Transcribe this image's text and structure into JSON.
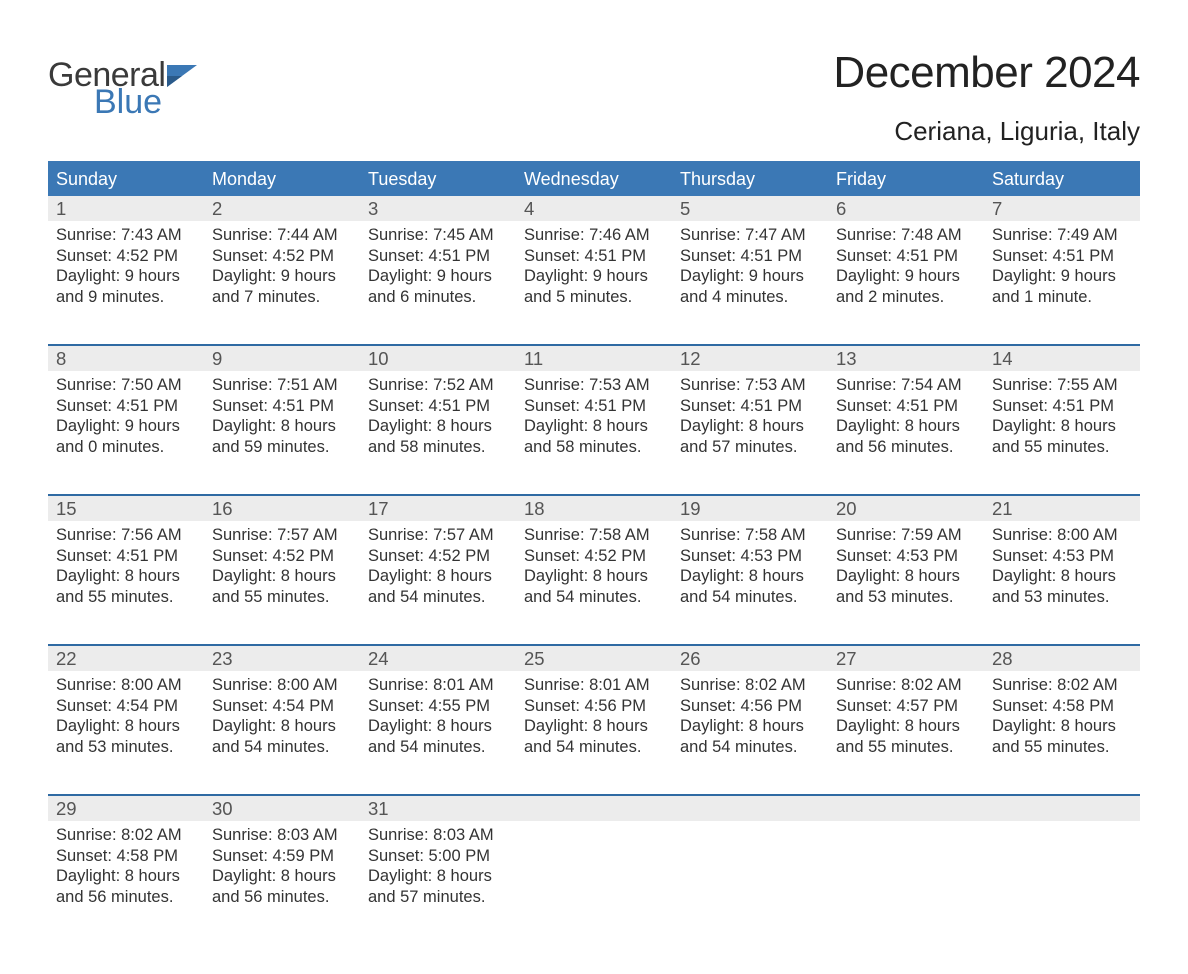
{
  "logo": {
    "word1": "General",
    "word2": "Blue",
    "flag_color": "#3b78b5"
  },
  "title": "December 2024",
  "subtitle": "Ceriana, Liguria, Italy",
  "colors": {
    "header_blue": "#3b78b5",
    "border_blue": "#2f6aa3",
    "daynum_bg": "#ececec",
    "text": "#2b2b2b",
    "white": "#ffffff"
  },
  "day_names": [
    "Sunday",
    "Monday",
    "Tuesday",
    "Wednesday",
    "Thursday",
    "Friday",
    "Saturday"
  ],
  "weeks": [
    [
      {
        "n": "1",
        "sunrise": "Sunrise: 7:43 AM",
        "sunset": "Sunset: 4:52 PM",
        "d1": "Daylight: 9 hours",
        "d2": "and 9 minutes."
      },
      {
        "n": "2",
        "sunrise": "Sunrise: 7:44 AM",
        "sunset": "Sunset: 4:52 PM",
        "d1": "Daylight: 9 hours",
        "d2": "and 7 minutes."
      },
      {
        "n": "3",
        "sunrise": "Sunrise: 7:45 AM",
        "sunset": "Sunset: 4:51 PM",
        "d1": "Daylight: 9 hours",
        "d2": "and 6 minutes."
      },
      {
        "n": "4",
        "sunrise": "Sunrise: 7:46 AM",
        "sunset": "Sunset: 4:51 PM",
        "d1": "Daylight: 9 hours",
        "d2": "and 5 minutes."
      },
      {
        "n": "5",
        "sunrise": "Sunrise: 7:47 AM",
        "sunset": "Sunset: 4:51 PM",
        "d1": "Daylight: 9 hours",
        "d2": "and 4 minutes."
      },
      {
        "n": "6",
        "sunrise": "Sunrise: 7:48 AM",
        "sunset": "Sunset: 4:51 PM",
        "d1": "Daylight: 9 hours",
        "d2": "and 2 minutes."
      },
      {
        "n": "7",
        "sunrise": "Sunrise: 7:49 AM",
        "sunset": "Sunset: 4:51 PM",
        "d1": "Daylight: 9 hours",
        "d2": "and 1 minute."
      }
    ],
    [
      {
        "n": "8",
        "sunrise": "Sunrise: 7:50 AM",
        "sunset": "Sunset: 4:51 PM",
        "d1": "Daylight: 9 hours",
        "d2": "and 0 minutes."
      },
      {
        "n": "9",
        "sunrise": "Sunrise: 7:51 AM",
        "sunset": "Sunset: 4:51 PM",
        "d1": "Daylight: 8 hours",
        "d2": "and 59 minutes."
      },
      {
        "n": "10",
        "sunrise": "Sunrise: 7:52 AM",
        "sunset": "Sunset: 4:51 PM",
        "d1": "Daylight: 8 hours",
        "d2": "and 58 minutes."
      },
      {
        "n": "11",
        "sunrise": "Sunrise: 7:53 AM",
        "sunset": "Sunset: 4:51 PM",
        "d1": "Daylight: 8 hours",
        "d2": "and 58 minutes."
      },
      {
        "n": "12",
        "sunrise": "Sunrise: 7:53 AM",
        "sunset": "Sunset: 4:51 PM",
        "d1": "Daylight: 8 hours",
        "d2": "and 57 minutes."
      },
      {
        "n": "13",
        "sunrise": "Sunrise: 7:54 AM",
        "sunset": "Sunset: 4:51 PM",
        "d1": "Daylight: 8 hours",
        "d2": "and 56 minutes."
      },
      {
        "n": "14",
        "sunrise": "Sunrise: 7:55 AM",
        "sunset": "Sunset: 4:51 PM",
        "d1": "Daylight: 8 hours",
        "d2": "and 55 minutes."
      }
    ],
    [
      {
        "n": "15",
        "sunrise": "Sunrise: 7:56 AM",
        "sunset": "Sunset: 4:51 PM",
        "d1": "Daylight: 8 hours",
        "d2": "and 55 minutes."
      },
      {
        "n": "16",
        "sunrise": "Sunrise: 7:57 AM",
        "sunset": "Sunset: 4:52 PM",
        "d1": "Daylight: 8 hours",
        "d2": "and 55 minutes."
      },
      {
        "n": "17",
        "sunrise": "Sunrise: 7:57 AM",
        "sunset": "Sunset: 4:52 PM",
        "d1": "Daylight: 8 hours",
        "d2": "and 54 minutes."
      },
      {
        "n": "18",
        "sunrise": "Sunrise: 7:58 AM",
        "sunset": "Sunset: 4:52 PM",
        "d1": "Daylight: 8 hours",
        "d2": "and 54 minutes."
      },
      {
        "n": "19",
        "sunrise": "Sunrise: 7:58 AM",
        "sunset": "Sunset: 4:53 PM",
        "d1": "Daylight: 8 hours",
        "d2": "and 54 minutes."
      },
      {
        "n": "20",
        "sunrise": "Sunrise: 7:59 AM",
        "sunset": "Sunset: 4:53 PM",
        "d1": "Daylight: 8 hours",
        "d2": "and 53 minutes."
      },
      {
        "n": "21",
        "sunrise": "Sunrise: 8:00 AM",
        "sunset": "Sunset: 4:53 PM",
        "d1": "Daylight: 8 hours",
        "d2": "and 53 minutes."
      }
    ],
    [
      {
        "n": "22",
        "sunrise": "Sunrise: 8:00 AM",
        "sunset": "Sunset: 4:54 PM",
        "d1": "Daylight: 8 hours",
        "d2": "and 53 minutes."
      },
      {
        "n": "23",
        "sunrise": "Sunrise: 8:00 AM",
        "sunset": "Sunset: 4:54 PM",
        "d1": "Daylight: 8 hours",
        "d2": "and 54 minutes."
      },
      {
        "n": "24",
        "sunrise": "Sunrise: 8:01 AM",
        "sunset": "Sunset: 4:55 PM",
        "d1": "Daylight: 8 hours",
        "d2": "and 54 minutes."
      },
      {
        "n": "25",
        "sunrise": "Sunrise: 8:01 AM",
        "sunset": "Sunset: 4:56 PM",
        "d1": "Daylight: 8 hours",
        "d2": "and 54 minutes."
      },
      {
        "n": "26",
        "sunrise": "Sunrise: 8:02 AM",
        "sunset": "Sunset: 4:56 PM",
        "d1": "Daylight: 8 hours",
        "d2": "and 54 minutes."
      },
      {
        "n": "27",
        "sunrise": "Sunrise: 8:02 AM",
        "sunset": "Sunset: 4:57 PM",
        "d1": "Daylight: 8 hours",
        "d2": "and 55 minutes."
      },
      {
        "n": "28",
        "sunrise": "Sunrise: 8:02 AM",
        "sunset": "Sunset: 4:58 PM",
        "d1": "Daylight: 8 hours",
        "d2": "and 55 minutes."
      }
    ],
    [
      {
        "n": "29",
        "sunrise": "Sunrise: 8:02 AM",
        "sunset": "Sunset: 4:58 PM",
        "d1": "Daylight: 8 hours",
        "d2": "and 56 minutes."
      },
      {
        "n": "30",
        "sunrise": "Sunrise: 8:03 AM",
        "sunset": "Sunset: 4:59 PM",
        "d1": "Daylight: 8 hours",
        "d2": "and 56 minutes."
      },
      {
        "n": "31",
        "sunrise": "Sunrise: 8:03 AM",
        "sunset": "Sunset: 5:00 PM",
        "d1": "Daylight: 8 hours",
        "d2": "and 57 minutes."
      },
      {
        "empty": true
      },
      {
        "empty": true
      },
      {
        "empty": true
      },
      {
        "empty": true
      }
    ]
  ]
}
